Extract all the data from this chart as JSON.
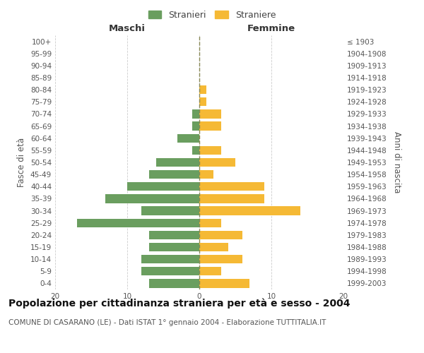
{
  "age_groups": [
    "0-4",
    "5-9",
    "10-14",
    "15-19",
    "20-24",
    "25-29",
    "30-34",
    "35-39",
    "40-44",
    "45-49",
    "50-54",
    "55-59",
    "60-64",
    "65-69",
    "70-74",
    "75-79",
    "80-84",
    "85-89",
    "90-94",
    "95-99",
    "100+"
  ],
  "birth_years": [
    "1999-2003",
    "1994-1998",
    "1989-1993",
    "1984-1988",
    "1979-1983",
    "1974-1978",
    "1969-1973",
    "1964-1968",
    "1959-1963",
    "1954-1958",
    "1949-1953",
    "1944-1948",
    "1939-1943",
    "1934-1938",
    "1929-1933",
    "1924-1928",
    "1919-1923",
    "1914-1918",
    "1909-1913",
    "1904-1908",
    "≤ 1903"
  ],
  "maschi": [
    7,
    8,
    8,
    7,
    7,
    17,
    8,
    13,
    10,
    7,
    6,
    1,
    3,
    1,
    1,
    0,
    0,
    0,
    0,
    0,
    0
  ],
  "femmine": [
    7,
    3,
    6,
    4,
    6,
    3,
    14,
    9,
    9,
    2,
    5,
    3,
    0,
    3,
    3,
    1,
    1,
    0,
    0,
    0,
    0
  ],
  "maschi_color": "#6a9e5f",
  "femmine_color": "#f5b935",
  "background_color": "#ffffff",
  "grid_color": "#cccccc",
  "dashed_line_color": "#888855",
  "title": "Popolazione per cittadinanza straniera per età e sesso - 2004",
  "subtitle": "COMUNE DI CASARANO (LE) - Dati ISTAT 1° gennaio 2004 - Elaborazione TUTTITALIA.IT",
  "ylabel_left": "Fasce di età",
  "ylabel_right": "Anni di nascita",
  "xlabel_left": "Maschi",
  "xlabel_right": "Femmine",
  "legend_stranieri": "Stranieri",
  "legend_straniere": "Straniere",
  "xlim": 20,
  "title_fontsize": 10,
  "subtitle_fontsize": 7.5,
  "axis_label_fontsize": 8.5,
  "tick_fontsize": 7.5,
  "header_fontsize": 9.5
}
